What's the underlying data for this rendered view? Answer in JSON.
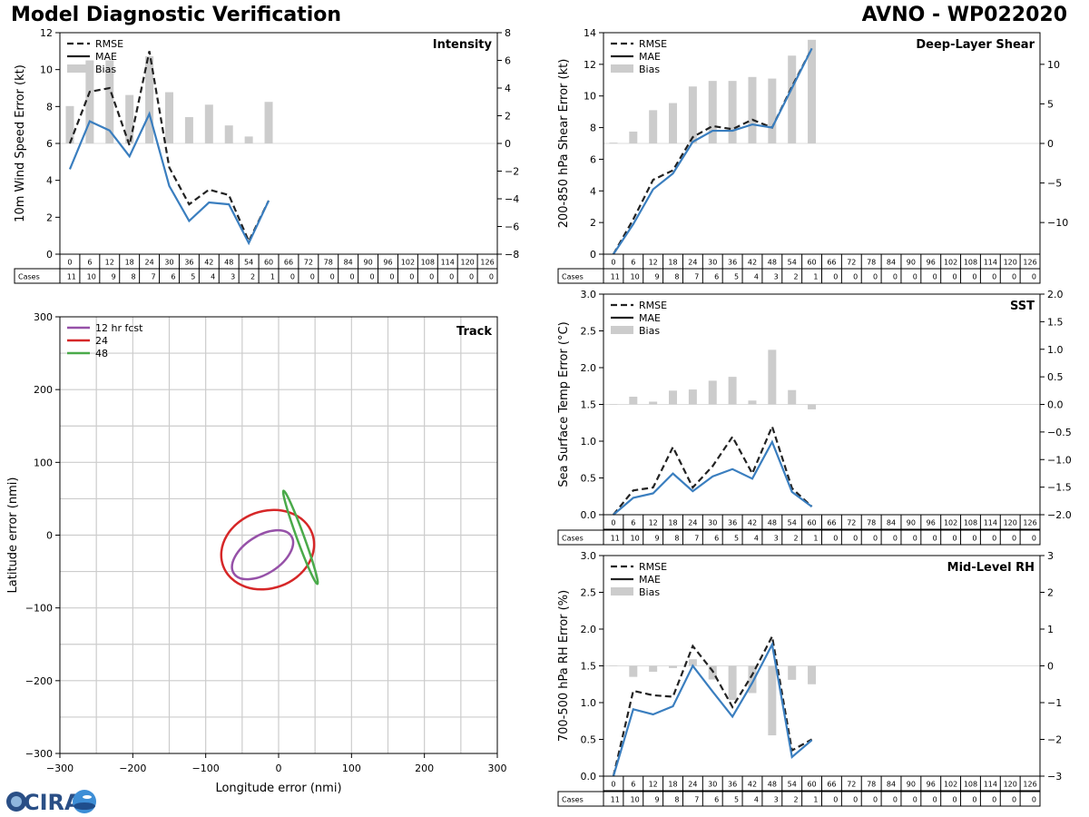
{
  "header": {
    "title": "Model Diagnostic Verification",
    "storm_label": "AVNO - WP022020"
  },
  "logo_text": "CIRA",
  "colors": {
    "rmse": "#222222",
    "mae": "#3a7ebf",
    "bias": "#cccccc",
    "track_12": "#9651a8",
    "track_24": "#d62728",
    "track_48": "#4aaa4a",
    "grid": "#cccccc"
  },
  "lead_times": [
    0,
    6,
    12,
    18,
    24,
    30,
    36,
    42,
    48,
    54,
    60,
    66,
    72,
    78,
    84,
    90,
    96,
    102,
    108,
    114,
    120,
    126
  ],
  "cases": [
    11,
    10,
    9,
    8,
    7,
    6,
    5,
    4,
    3,
    2,
    1,
    0,
    0,
    0,
    0,
    0,
    0,
    0,
    0,
    0,
    0,
    0
  ],
  "cases_label": "Cases",
  "chart_data": [
    {
      "id": "intensity",
      "type": "line",
      "title": "Intensity",
      "ylabel": "10m Wind Speed Error (kt)",
      "ylim": [
        0,
        12
      ],
      "yticks": [
        0,
        2,
        4,
        6,
        8,
        10,
        12
      ],
      "y2lim": [
        -8,
        8
      ],
      "y2ticks": [
        -8,
        -6,
        -4,
        -2,
        0,
        2,
        4,
        6,
        8
      ],
      "y2ticklabels": [
        "−8",
        "−6",
        "−4",
        "−2",
        "0",
        "2",
        "4",
        "6",
        "8"
      ],
      "legend": [
        "RMSE",
        "MAE",
        "Bias"
      ],
      "legend_loc": "top-left",
      "x": [
        0,
        6,
        12,
        18,
        24,
        30,
        36,
        42,
        48,
        54,
        60
      ],
      "rmse": [
        6.0,
        8.8,
        9.0,
        5.9,
        11.0,
        4.7,
        2.7,
        3.5,
        3.2,
        0.7,
        2.9
      ],
      "mae": [
        4.6,
        7.2,
        6.7,
        5.3,
        7.6,
        3.7,
        1.8,
        2.8,
        2.7,
        0.6,
        2.9
      ],
      "bias": [
        2.7,
        6.0,
        6.0,
        3.5,
        6.3,
        3.7,
        1.9,
        2.8,
        1.3,
        0.5,
        3.0
      ]
    },
    {
      "id": "shear",
      "type": "line",
      "title": "Deep-Layer Shear",
      "ylabel": "200-850 hPa Shear Error (kt)",
      "ylim": [
        0,
        14
      ],
      "yticks": [
        0,
        2,
        4,
        6,
        8,
        10,
        12,
        14
      ],
      "y2lim": [
        -14,
        14
      ],
      "y2ticks": [
        -10,
        -5,
        0,
        5,
        10
      ],
      "y2ticklabels": [
        "−10",
        "−5",
        "0",
        "5",
        "10"
      ],
      "legend": [
        "RMSE",
        "MAE",
        "Bias"
      ],
      "legend_loc": "top-left",
      "x": [
        0,
        6,
        12,
        18,
        24,
        30,
        36,
        42,
        48,
        54,
        60
      ],
      "rmse": [
        0.0,
        2.2,
        4.7,
        5.3,
        7.4,
        8.1,
        7.9,
        8.5,
        8.0,
        10.6,
        13.0
      ],
      "mae": [
        0.0,
        1.9,
        4.1,
        5.1,
        7.1,
        7.8,
        7.8,
        8.2,
        8.0,
        10.5,
        13.0
      ],
      "bias": [
        0.1,
        1.5,
        4.2,
        5.1,
        7.2,
        7.9,
        7.9,
        8.4,
        8.2,
        11.1,
        13.1
      ]
    },
    {
      "id": "sst",
      "type": "line",
      "title": "SST",
      "ylabel": "Sea Surface Temp Error (°C)",
      "ylim": [
        0,
        3
      ],
      "yticks": [
        0.0,
        0.5,
        1.0,
        1.5,
        2.0,
        2.5,
        3.0
      ],
      "yticklabels": [
        "0.0",
        "0.5",
        "1.0",
        "1.5",
        "2.0",
        "2.5",
        "3.0"
      ],
      "y2lim": [
        -2,
        2
      ],
      "y2ticks": [
        -2.0,
        -1.5,
        -1.0,
        -0.5,
        0.0,
        0.5,
        1.0,
        1.5,
        2.0
      ],
      "y2ticklabels": [
        "−2.0",
        "−1.5",
        "−1.0",
        "−0.5",
        "0.0",
        "0.5",
        "1.0",
        "1.5",
        "2.0"
      ],
      "legend": [
        "RMSE",
        "MAE",
        "Bias"
      ],
      "legend_loc": "top-left",
      "x": [
        0,
        6,
        12,
        18,
        24,
        30,
        36,
        42,
        48,
        54,
        60
      ],
      "rmse": [
        0.0,
        0.33,
        0.37,
        0.92,
        0.37,
        0.66,
        1.06,
        0.56,
        1.2,
        0.36,
        0.11
      ],
      "mae": [
        0.0,
        0.23,
        0.29,
        0.56,
        0.32,
        0.52,
        0.62,
        0.49,
        0.99,
        0.31,
        0.11
      ],
      "bias": [
        0.0,
        0.14,
        0.05,
        0.25,
        0.27,
        0.43,
        0.5,
        0.07,
        0.99,
        0.26,
        -0.09
      ]
    },
    {
      "id": "rh",
      "type": "line",
      "title": "Mid-Level RH",
      "ylabel": "700-500 hPa RH Error (%)",
      "ylim": [
        0,
        3
      ],
      "yticks": [
        0.0,
        0.5,
        1.0,
        1.5,
        2.0,
        2.5,
        3.0
      ],
      "yticklabels": [
        "0.0",
        "0.5",
        "1.0",
        "1.5",
        "2.0",
        "2.5",
        "3.0"
      ],
      "y2lim": [
        -3,
        3
      ],
      "y2ticks": [
        -3,
        -2,
        -1,
        0,
        1,
        2,
        3
      ],
      "y2ticklabels": [
        "−3",
        "−2",
        "−1",
        "0",
        "1",
        "2",
        "3"
      ],
      "legend": [
        "RMSE",
        "MAE",
        "Bias"
      ],
      "legend_loc": "top-left",
      "x": [
        0,
        6,
        12,
        18,
        24,
        30,
        36,
        42,
        48,
        54,
        60
      ],
      "rmse": [
        0.0,
        1.16,
        1.1,
        1.08,
        1.77,
        1.43,
        0.94,
        1.38,
        1.9,
        0.35,
        0.5
      ],
      "mae": [
        0.0,
        0.91,
        0.84,
        0.95,
        1.5,
        1.15,
        0.81,
        1.27,
        1.79,
        0.26,
        0.49
      ],
      "bias": [
        0.0,
        -0.3,
        -0.16,
        -0.06,
        0.18,
        -0.37,
        -0.93,
        -0.74,
        -1.89,
        -0.38,
        -0.5
      ]
    },
    {
      "id": "track",
      "type": "line",
      "title": "Track",
      "xlabel": "Longitude error (nmi)",
      "ylabel": "Latitude error (nmi)",
      "xlim": [
        -300,
        300
      ],
      "ylim": [
        -300,
        300
      ],
      "ticks": [
        -300,
        -200,
        -100,
        0,
        100,
        200,
        300
      ],
      "ticklabels": [
        "−300",
        "−200",
        "−100",
        "0",
        "100",
        "200",
        "300"
      ],
      "legend_loc": "top-left",
      "series": [
        {
          "name": "12 hr fcst",
          "center": [
            -22,
            -27
          ],
          "semi_axes": [
            47,
            26
          ],
          "angle_deg": -33
        },
        {
          "name": "24",
          "center": [
            -15,
            -20
          ],
          "semi_axes": [
            65,
            53
          ],
          "angle_deg": -20
        },
        {
          "name": "48",
          "center": [
            30,
            -3
          ],
          "semi_axes": [
            68,
            5
          ],
          "angle_deg": 70
        }
      ]
    }
  ]
}
